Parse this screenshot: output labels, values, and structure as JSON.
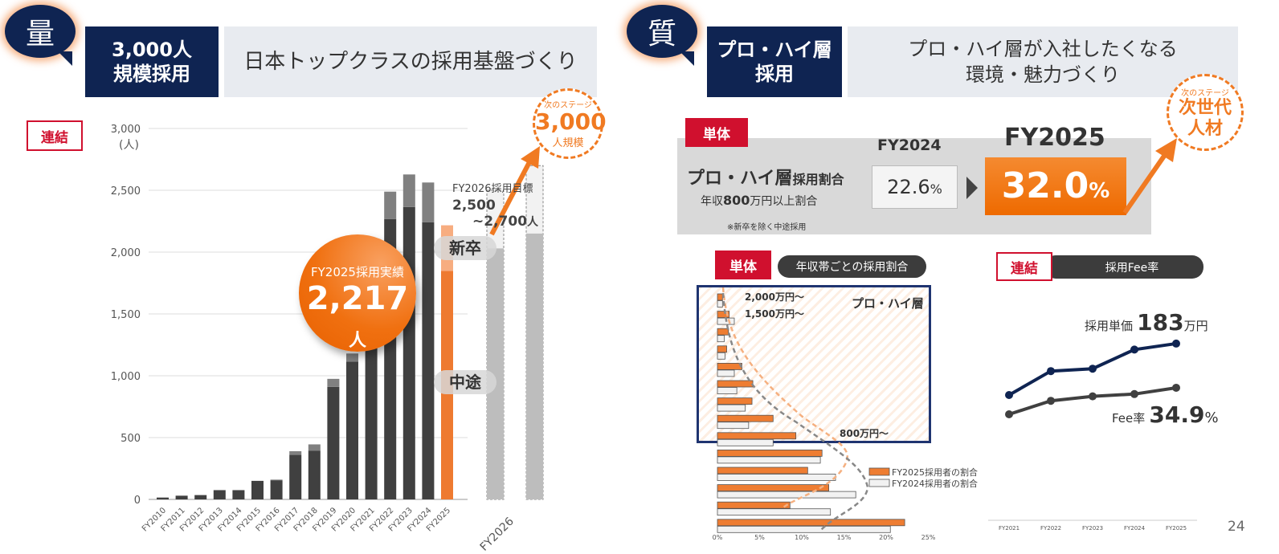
{
  "left": {
    "bubble": "量",
    "title_lines": [
      "3,000人",
      "規模採用"
    ],
    "headline": "日本トップクラスの採用基盤づくり",
    "scope_badge": "連結",
    "next_stage": {
      "small": "次のステージ",
      "big": "3,000",
      "unit": "人規模"
    },
    "highlight": {
      "label": "FY2025採用実績",
      "value": "2,217",
      "unit": "人"
    },
    "target": {
      "label": "FY2026採用目標",
      "line1": "2,500",
      "line2": "~2,700",
      "unit": "人"
    },
    "segment_labels": {
      "new_grad": "新卒",
      "mid_career": "中途"
    }
  },
  "right": {
    "bubble": "質",
    "title_lines": [
      "プロ・ハイ層",
      "採用"
    ],
    "headline_lines": [
      "プロ・ハイ層が入社したくなる",
      "環境・魅力づくり"
    ],
    "next_stage": {
      "small": "次のステージ",
      "line1": "次世代",
      "line2": "人材"
    },
    "kpi": {
      "badge": "単体",
      "title_main": "プロ・ハイ層",
      "title_suffix": "採用割合",
      "sub_pre": "年収",
      "sub_bold": "800",
      "sub_post": "万円以上割合",
      "note": "※新卒を除く中途採用",
      "prev_label": "FY2024",
      "prev_value": "22.6",
      "prev_unit": "%",
      "curr_label": "FY2025",
      "curr_value": "32.0",
      "curr_unit": "%"
    },
    "band_panel": {
      "badge": "単体",
      "title": "年収帯ごとの採用割合",
      "zone_label": "プロ・ハイ層",
      "band_labels": [
        "2,000万円～",
        "1,500万円～",
        "800万円～"
      ]
    },
    "fee_panel": {
      "badge": "連結",
      "title": "採用Fee率",
      "price_label": "採用単価",
      "price_value": "183",
      "price_unit": "万円",
      "fee_label": "Fee率",
      "fee_value": "34.9",
      "fee_unit": "%"
    }
  },
  "page_number": "24",
  "colors": {
    "navy": "#0f2452",
    "orange": "#f07a22",
    "red": "#d0102e",
    "dark_bar": "#404040",
    "light_bar": "#808080"
  },
  "chart_data": [
    {
      "type": "bar",
      "stacked": true,
      "ylabel": "(人)",
      "ylim": [
        0,
        3000
      ],
      "yticks": [
        "0",
        "500",
        "1,000",
        "1,500",
        "2,000",
        "2,500",
        "3,000"
      ],
      "grid": true,
      "categories": [
        "FY2010",
        "FY2011",
        "FY2012",
        "FY2013",
        "FY2014",
        "FY2015",
        "FY2016",
        "FY2017",
        "FY2018",
        "FY2019",
        "FY2020",
        "FY2021",
        "FY2022",
        "FY2023",
        "FY2024",
        "FY2025"
      ],
      "series": [
        {
          "name": "中途",
          "values": [
            15,
            30,
            35,
            75,
            75,
            150,
            155,
            360,
            395,
            910,
            1115,
            1600,
            2268,
            2365,
            2242,
            1848
          ]
        },
        {
          "name": "新卒",
          "values": [
            0,
            0,
            0,
            0,
            0,
            0,
            5,
            30,
            50,
            65,
            65,
            150,
            221,
            263,
            321,
            369
          ]
        }
      ],
      "target": {
        "category": "FY2026",
        "totals": [
          2500,
          2700
        ],
        "base": [
          2030,
          2150
        ]
      }
    },
    {
      "type": "bar",
      "orientation": "horizontal",
      "xlim": [
        0,
        25
      ],
      "xticks": [
        "0%",
        "5%",
        "10%",
        "15%",
        "20%",
        "25%"
      ],
      "series": [
        {
          "name": "FY2025採用者の割合",
          "values": [
            0.6,
            1.4,
            1.3,
            1.1,
            2.9,
            4.2,
            4.1,
            6.6,
            9.3,
            12.4,
            10.7,
            13.2,
            8.6,
            22.2
          ]
        },
        {
          "name": "FY2024採用者の割合",
          "values": [
            0.6,
            2.0,
            0.8,
            0.9,
            2.0,
            2.3,
            3.3,
            3.7,
            6.6,
            12.2,
            14.0,
            16.4,
            13.4,
            20.5
          ]
        }
      ],
      "legend": "bottom-right"
    },
    {
      "type": "line",
      "categories": [
        "FY2021",
        "FY2022",
        "FY2023",
        "FY2024",
        "FY2025"
      ],
      "series": [
        {
          "name": "採用単価",
          "values": [
            140,
            160,
            162,
            178,
            183
          ],
          "color": "#0f2452"
        },
        {
          "name": "Fee率",
          "values": [
            29.0,
            32.0,
            33.0,
            33.5,
            34.9
          ],
          "color": "#404040"
        }
      ]
    }
  ]
}
